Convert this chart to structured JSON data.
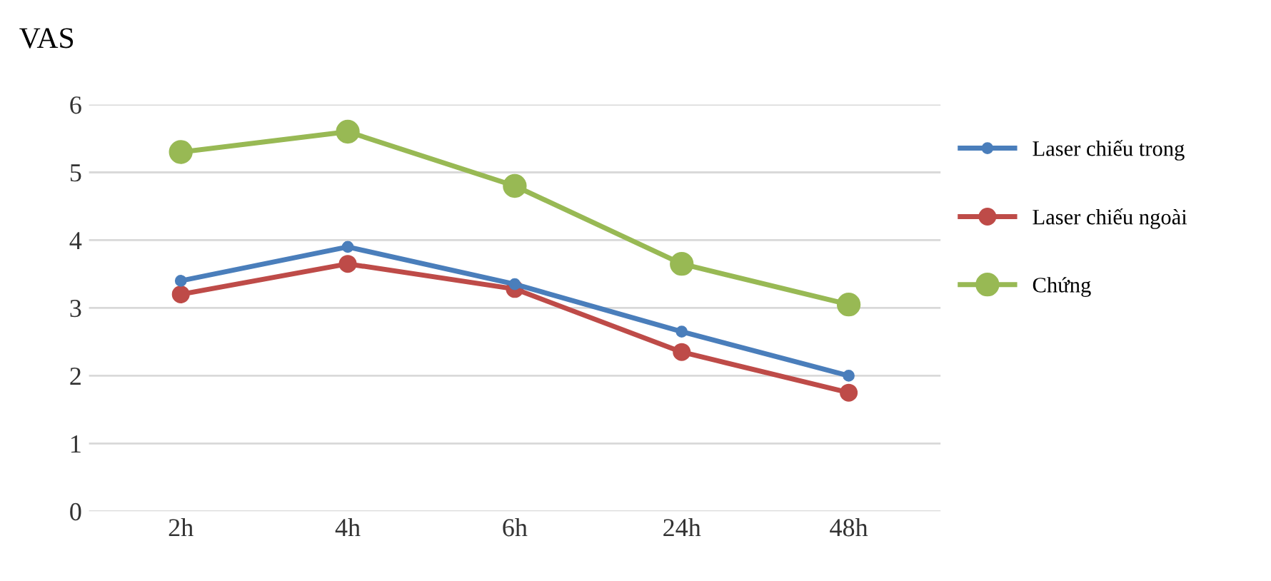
{
  "chart_data": {
    "type": "line",
    "ylabel": "VAS",
    "categories": [
      "2h",
      "4h",
      "6h",
      "24h",
      "48h"
    ],
    "series": [
      {
        "name": "Laser chiếu trong",
        "color": "#4a7ebb",
        "values": [
          3.4,
          3.9,
          3.35,
          2.65,
          2.0
        ]
      },
      {
        "name": "Laser chiếu ngoài",
        "color": "#be4b48",
        "values": [
          3.2,
          3.65,
          3.28,
          2.35,
          1.75
        ]
      },
      {
        "name": "Chứng",
        "color": "#98b954",
        "values": [
          5.3,
          5.6,
          4.8,
          3.65,
          3.05
        ]
      }
    ],
    "ylim": [
      0,
      6
    ],
    "yticks": [
      0,
      1,
      2,
      3,
      4,
      5,
      6
    ],
    "grid": "y",
    "legend": "right",
    "marker": "circle",
    "line_style": "solid"
  }
}
